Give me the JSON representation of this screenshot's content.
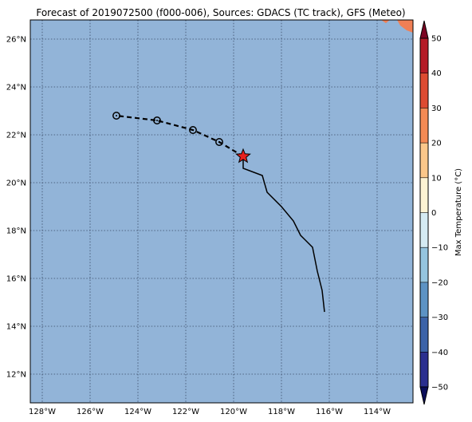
{
  "title": "Forecast of 2019072500 (f000-006), Sources: GDACS (TC track), GFS (Meteo)",
  "map": {
    "lon_range": [
      -128.5,
      -112.5
    ],
    "lat_range": [
      10.8,
      26.8
    ],
    "ocean_color": "#92b4d8",
    "grid": true,
    "lon_ticks": [
      {
        "value": -128,
        "label": "128°W"
      },
      {
        "value": -126,
        "label": "126°W"
      },
      {
        "value": -124,
        "label": "124°W"
      },
      {
        "value": -122,
        "label": "122°W"
      },
      {
        "value": -120,
        "label": "120°W"
      },
      {
        "value": -118,
        "label": "118°W"
      },
      {
        "value": -116,
        "label": "116°W"
      },
      {
        "value": -114,
        "label": "114°W"
      }
    ],
    "lat_ticks": [
      {
        "value": 12,
        "label": "12°N"
      },
      {
        "value": 14,
        "label": "14°N"
      },
      {
        "value": 16,
        "label": "16°N"
      },
      {
        "value": 18,
        "label": "18°N"
      },
      {
        "value": 20,
        "label": "20°N"
      },
      {
        "value": 22,
        "label": "22°N"
      },
      {
        "value": 24,
        "label": "24°N"
      },
      {
        "value": 26,
        "label": "26°N"
      }
    ]
  },
  "track": {
    "past": [
      [
        -116.2,
        14.6
      ],
      [
        -116.3,
        15.5
      ],
      [
        -116.5,
        16.3
      ],
      [
        -116.7,
        17.3
      ],
      [
        -117.2,
        17.8
      ],
      [
        -117.5,
        18.4
      ],
      [
        -118.0,
        19.0
      ],
      [
        -118.6,
        19.6
      ],
      [
        -118.8,
        20.3
      ],
      [
        -119.6,
        20.6
      ],
      [
        -119.6,
        21.1
      ]
    ],
    "current": [
      -119.6,
      21.1
    ],
    "forecast": [
      [
        -119.6,
        21.1
      ],
      [
        -120.6,
        21.7
      ],
      [
        -121.7,
        22.2
      ],
      [
        -123.2,
        22.6
      ],
      [
        -124.9,
        22.8
      ]
    ],
    "forecast_points": [
      [
        -120.6,
        21.7
      ],
      [
        -121.7,
        22.2
      ],
      [
        -123.2,
        22.6
      ],
      [
        -124.9,
        22.8
      ]
    ],
    "current_color": "#e8201e"
  },
  "colorbar": {
    "label": "Max Temperature (°C)",
    "levels": [
      -50,
      -40,
      -30,
      -20,
      -10,
      0,
      10,
      20,
      30,
      40,
      50
    ],
    "tick_labels": [
      "−50",
      "−40",
      "−30",
      "−20",
      "−10",
      "0",
      "10",
      "20",
      "30",
      "40",
      "50"
    ],
    "colors": [
      "#2b2f8f",
      "#3c63a8",
      "#5d93c4",
      "#95c5df",
      "#d5ebf3",
      "#fdf3d3",
      "#fbc78a",
      "#f48a54",
      "#dd4b32",
      "#b51b27"
    ],
    "under_color": "#0b0e5a",
    "over_color": "#7b0422"
  },
  "land_color": "#f07f55"
}
